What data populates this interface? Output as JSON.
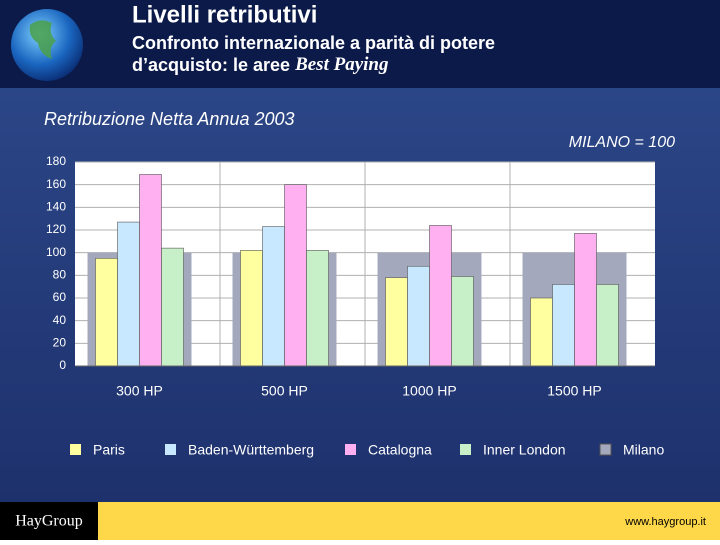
{
  "header": {
    "title": "Livelli retributivi",
    "subtitle_line1": "Confronto internazionale a parità di potere",
    "subtitle_line2": "d’acquisto: le aree",
    "subtitle_emphasis": "Best Paying"
  },
  "chart_data": {
    "type": "bar",
    "title": "Retribuzione Netta Annua 2003",
    "annotation": "MILANO = 100",
    "categories": [
      "300 HP",
      "500 HP",
      "1000 HP",
      "1500 HP"
    ],
    "series": [
      {
        "name": "Paris",
        "color": "#ffffa0",
        "values": [
          95,
          102,
          78,
          60
        ]
      },
      {
        "name": "Baden-Württemberg",
        "color": "#c8e8ff",
        "values": [
          127,
          123,
          88,
          72
        ]
      },
      {
        "name": "Catalogna",
        "color": "#ffb0f0",
        "values": [
          169,
          160,
          124,
          117
        ]
      },
      {
        "name": "Inner London",
        "color": "#c8f0c8",
        "values": [
          104,
          102,
          79,
          72
        ]
      },
      {
        "name": "Milano",
        "color": "#a4a8bc",
        "values": [
          100,
          100,
          100,
          100
        ],
        "background": true
      }
    ],
    "ylim": [
      0,
      180
    ],
    "yticks": [
      0,
      20,
      40,
      60,
      80,
      100,
      120,
      140,
      160,
      180
    ],
    "grid": true
  },
  "footer": {
    "logo": "HayGroup",
    "url": "www.haygroup.it"
  }
}
